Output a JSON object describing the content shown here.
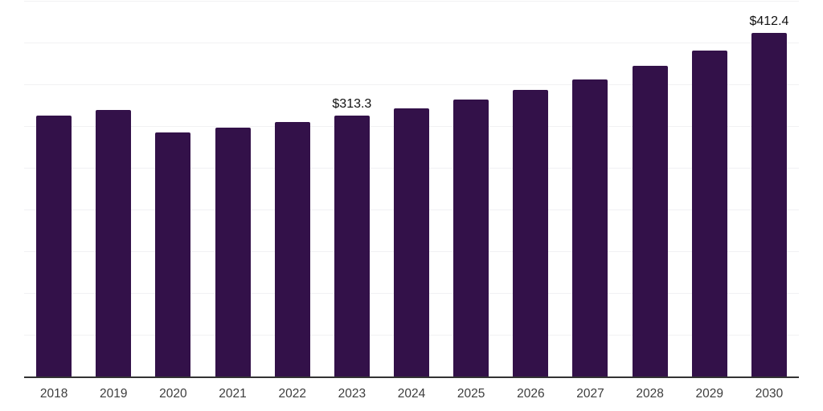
{
  "chart_data": {
    "type": "bar",
    "title": "",
    "xlabel": "",
    "ylabel": "",
    "categories": [
      "2018",
      "2019",
      "2020",
      "2021",
      "2022",
      "2023",
      "2024",
      "2025",
      "2026",
      "2027",
      "2028",
      "2029",
      "2030"
    ],
    "values": [
      313.0,
      320.3,
      293.0,
      299.0,
      305.5,
      313.3,
      321.8,
      332.9,
      344.4,
      357.0,
      373.3,
      391.6,
      412.4
    ],
    "data_labels": {
      "2023": "$313.3",
      "2030": "$412.4"
    },
    "ylim": [
      0,
      450
    ],
    "gridline_step": 50,
    "grid": true,
    "legend_position": "none",
    "colors": {
      "bar": "#331149",
      "gridline": "#f1f1f3",
      "axis_line": "#333333",
      "tick_label": "#3d3d3d",
      "data_label": "#111111",
      "background": "#ffffff"
    }
  }
}
